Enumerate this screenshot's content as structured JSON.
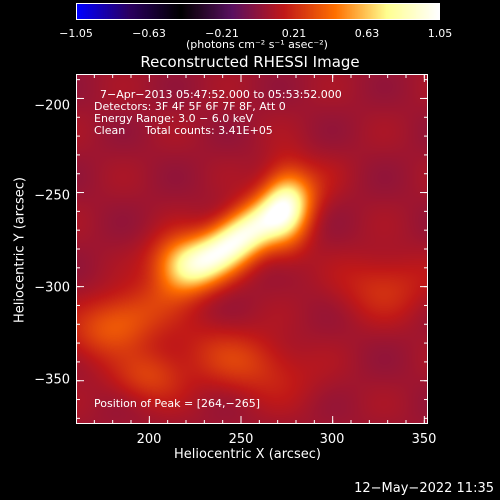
{
  "colorbar": {
    "ticks": [
      "−1.05",
      "−0.63",
      "−0.21",
      "0.21",
      "0.63",
      "1.05"
    ],
    "unit_label": "(photons cm⁻² s⁻¹ asec⁻²)",
    "colors": [
      "#0000ff",
      "#2a0060",
      "#000000",
      "#5a1060",
      "#c01818",
      "#ff7000",
      "#ffff90",
      "#ffffff"
    ]
  },
  "chart_data": {
    "type": "heatmap",
    "title": "Reconstructed RHESSI Image",
    "xlabel": "Heliocentric X (arcsec)",
    "ylabel": "Heliocentric Y (arcsec)",
    "xlim": [
      160,
      352
    ],
    "ylim": [
      -373,
      -187
    ],
    "xticks": [
      200,
      250,
      300,
      350
    ],
    "yticks": [
      -200,
      -250,
      -300,
      -350
    ],
    "colorbar_range": [
      -1.05,
      1.05
    ],
    "peak": [
      264,
      -265
    ],
    "sources": [
      {
        "x": 248,
        "y": -275,
        "sx": 26,
        "sy": 9,
        "angle": 35,
        "amp": 0.98
      },
      {
        "x": 275,
        "y": -258,
        "sx": 9,
        "sy": 15,
        "angle": 0,
        "amp": 0.55
      },
      {
        "x": 218,
        "y": -286,
        "sx": 12,
        "sy": 10,
        "angle": 0,
        "amp": 0.45
      },
      {
        "x": 182,
        "y": -320,
        "sx": 18,
        "sy": 11,
        "angle": 20,
        "amp": 0.32
      },
      {
        "x": 200,
        "y": -348,
        "sx": 14,
        "sy": 10,
        "angle": 0,
        "amp": 0.22
      },
      {
        "x": 328,
        "y": -300,
        "sx": 18,
        "sy": 12,
        "angle": 0,
        "amp": 0.18
      },
      {
        "x": 250,
        "y": -340,
        "sx": 25,
        "sy": 12,
        "angle": -15,
        "amp": 0.22
      }
    ],
    "background": 0.05,
    "info": {
      "time_range": "7−Apr−2013 05:47:52.000 to 05:53:52.000",
      "detectors": "Detectors: 3F 4F 5F 6F 7F 8F, Att 0",
      "energy": "Energy Range: 3.0 − 6.0 keV",
      "clean": "Clean",
      "counts": "Total counts: 3.41E+05"
    },
    "peak_text": "Position of Peak = [264,−265]"
  },
  "timestamp": "12−May−2022 11:35",
  "x_tick_labels": [
    "200",
    "250",
    "300",
    "350"
  ],
  "y_tick_labels": [
    "−200",
    "−250",
    "−300",
    "−350"
  ]
}
